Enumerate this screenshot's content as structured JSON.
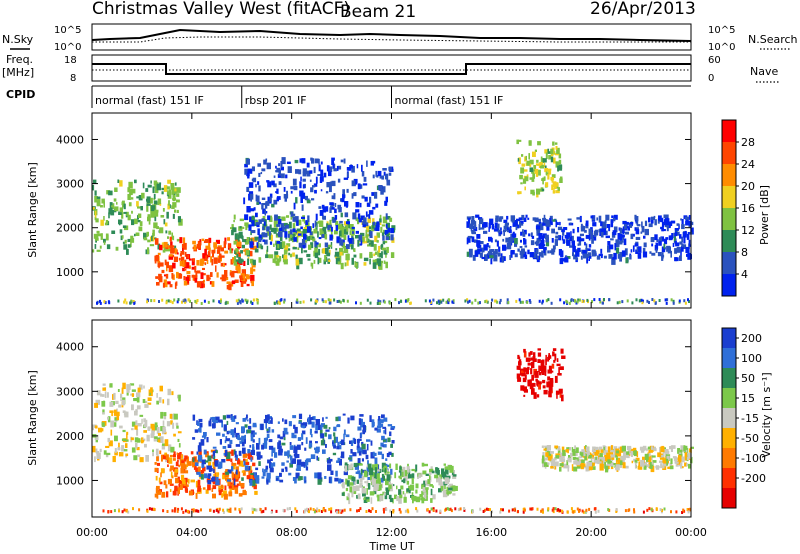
{
  "header": {
    "station": "Christmas Valley West (fitACF)",
    "beam": "Beam 21",
    "date": "26/Apr/2013"
  },
  "summary": {
    "nsky_label": "N.Sky",
    "nsky_ticks": [
      "10^5",
      "10^0"
    ],
    "nsearch_label": "N.Search",
    "nsearch_ticks": [
      "10^5",
      "10^0"
    ],
    "freq_label": "Freq.",
    "freq_unit": "[MHz]",
    "freq_ticks": [
      "18",
      "8"
    ],
    "nave_label": "Nave",
    "nave_ticks": [
      "60",
      "0"
    ],
    "cpid_label": "CPID",
    "cpid_segments": [
      {
        "label": "normal (fast) 151 IF",
        "start_h": 0,
        "end_h": 6
      },
      {
        "label": "rbsp 201 IF",
        "start_h": 6,
        "end_h": 12
      },
      {
        "label": "normal (fast) 151 IF",
        "start_h": 12,
        "end_h": 24
      }
    ]
  },
  "axes": {
    "x_label": "Time UT",
    "x_ticks": [
      "00:00",
      "04:00",
      "08:00",
      "12:00",
      "16:00",
      "20:00",
      "00:00"
    ],
    "y_label": "Slant Range [km]",
    "y_ticks": [
      "1000",
      "2000",
      "3000",
      "4000"
    ]
  },
  "colorbars": {
    "power": {
      "title": "Power [dB]",
      "ticks": [
        "4",
        "8",
        "12",
        "16",
        "20",
        "24",
        "28"
      ],
      "colors": [
        "#0022ee",
        "#2a52be",
        "#2e8b57",
        "#7fc241",
        "#f0d020",
        "#ff8c00",
        "#ff4500",
        "#ff0000"
      ]
    },
    "velocity": {
      "title": "Velocity [m s⁻¹]",
      "ticks": [
        "200",
        "100",
        "50",
        "15",
        "-15",
        "-50",
        "-100",
        "-200"
      ],
      "colors": [
        "#1a3ecf",
        "#2f6fd8",
        "#2e8b57",
        "#7cc84a",
        "#c9c9c0",
        "#ffb000",
        "#ff7a00",
        "#ff3000",
        "#e60000"
      ]
    }
  },
  "chart_data": [
    {
      "type": "heatmap",
      "title": "Power [dB]",
      "xlabel": "Time UT",
      "ylabel": "Slant Range [km]",
      "xlim": [
        0,
        24
      ],
      "ylim": [
        180,
        4600
      ],
      "zlim": [
        0,
        30
      ],
      "regions": [
        {
          "x": [
            0,
            3.5
          ],
          "y": [
            1500,
            3100
          ],
          "z": 12
        },
        {
          "x": [
            2.5,
            6.5
          ],
          "y": [
            700,
            1800
          ],
          "z": 24
        },
        {
          "x": [
            5.5,
            12
          ],
          "y": [
            1200,
            2300
          ],
          "z": 12
        },
        {
          "x": [
            6,
            12
          ],
          "y": [
            1600,
            3600
          ],
          "z": 4
        },
        {
          "x": [
            17,
            18.8
          ],
          "y": [
            2800,
            4000
          ],
          "z": 14
        },
        {
          "x": [
            15,
            24
          ],
          "y": [
            1300,
            2300
          ],
          "z": 4
        }
      ]
    },
    {
      "type": "heatmap",
      "title": "Velocity [m s⁻¹]",
      "xlabel": "Time UT",
      "ylabel": "Slant Range [km]",
      "xlim": [
        0,
        24
      ],
      "ylim": [
        180,
        4600
      ],
      "zlim": [
        -200,
        200
      ],
      "regions": [
        {
          "x": [
            0,
            3.5
          ],
          "y": [
            1500,
            3200
          ],
          "z": 0
        },
        {
          "x": [
            2.5,
            6.5
          ],
          "y": [
            700,
            1700
          ],
          "z": -100
        },
        {
          "x": [
            4,
            12
          ],
          "y": [
            1000,
            2500
          ],
          "z": 150
        },
        {
          "x": [
            10,
            14.5
          ],
          "y": [
            600,
            1400
          ],
          "z": 40
        },
        {
          "x": [
            17,
            18.8
          ],
          "y": [
            2900,
            4000
          ],
          "z": -200
        },
        {
          "x": [
            18,
            24
          ],
          "y": [
            1300,
            1800
          ],
          "z": 0
        }
      ]
    }
  ]
}
